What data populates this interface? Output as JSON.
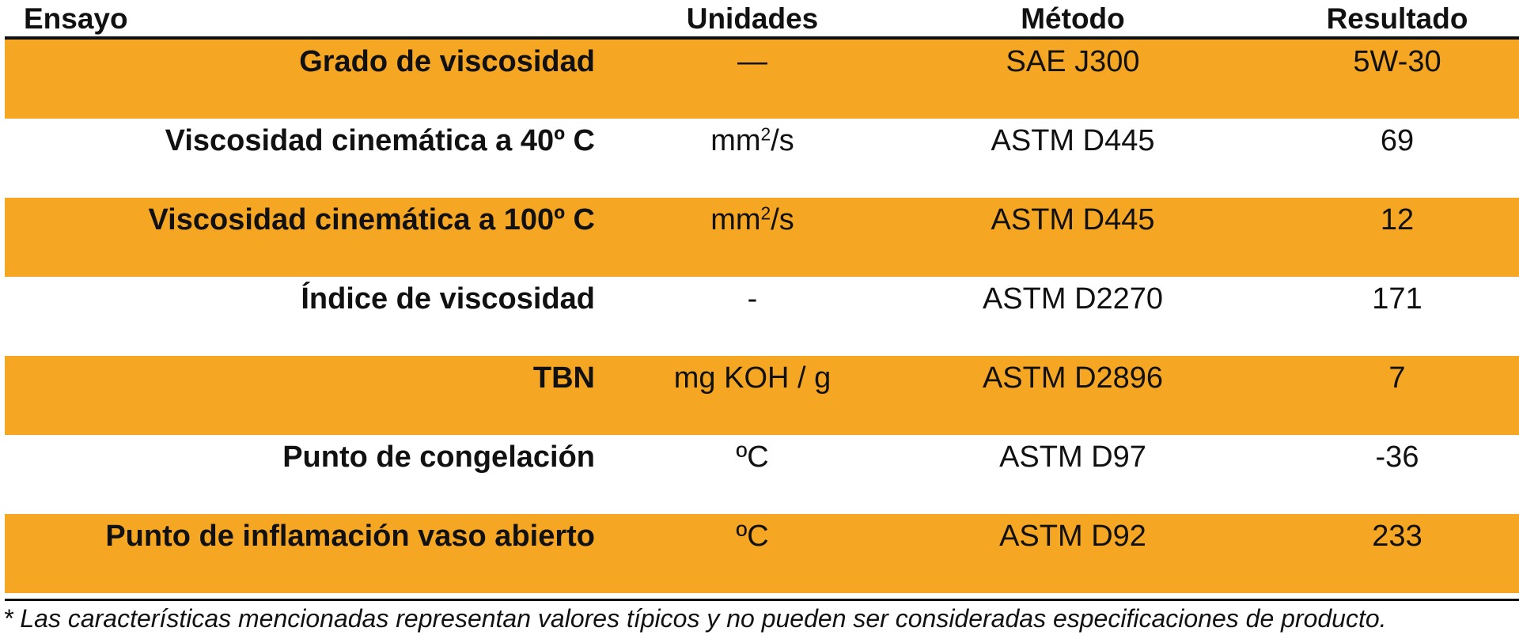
{
  "table": {
    "headers": {
      "ensayo": "Ensayo",
      "unidades": "Unidades",
      "metodo": "Método",
      "resultado": "Resultado"
    },
    "rows": [
      {
        "ensayo": "Grado de viscosidad",
        "unidades": "—",
        "unidades_sup": "",
        "unidades_suffix": "",
        "metodo": "SAE J300",
        "resultado": "5W-30",
        "band": "orange"
      },
      {
        "ensayo": "Viscosidad cinemática a 40º C",
        "unidades": "mm",
        "unidades_sup": "2",
        "unidades_suffix": "/s",
        "metodo": "ASTM D445",
        "resultado": "69",
        "band": "white"
      },
      {
        "ensayo": "Viscosidad cinemática a 100º C",
        "unidades": "mm",
        "unidades_sup": "2",
        "unidades_suffix": "/s",
        "metodo": "ASTM D445",
        "resultado": "12",
        "band": "orange"
      },
      {
        "ensayo": "Índice de viscosidad",
        "unidades": "-",
        "unidades_sup": "",
        "unidades_suffix": "",
        "metodo": "ASTM D2270",
        "resultado": "171",
        "band": "white"
      },
      {
        "ensayo": "TBN",
        "unidades": "mg KOH / g",
        "unidades_sup": "",
        "unidades_suffix": "",
        "metodo": "ASTM D2896",
        "resultado": "7",
        "band": "orange"
      },
      {
        "ensayo": "Punto de congelación",
        "unidades": "ºC",
        "unidades_sup": "",
        "unidades_suffix": "",
        "metodo": "ASTM D97",
        "resultado": "-36",
        "band": "white"
      },
      {
        "ensayo": "Punto de inflamación vaso abierto",
        "unidades": "ºC",
        "unidades_sup": "",
        "unidades_suffix": "",
        "metodo": "ASTM D92",
        "resultado": "233",
        "band": "orange"
      }
    ]
  },
  "footnote": "* Las características mencionadas  representan valores típicos y no pueden ser consideradas especificaciones de producto.",
  "colors": {
    "band_orange": "#f5a623",
    "band_white": "#ffffff",
    "text": "#111111"
  }
}
